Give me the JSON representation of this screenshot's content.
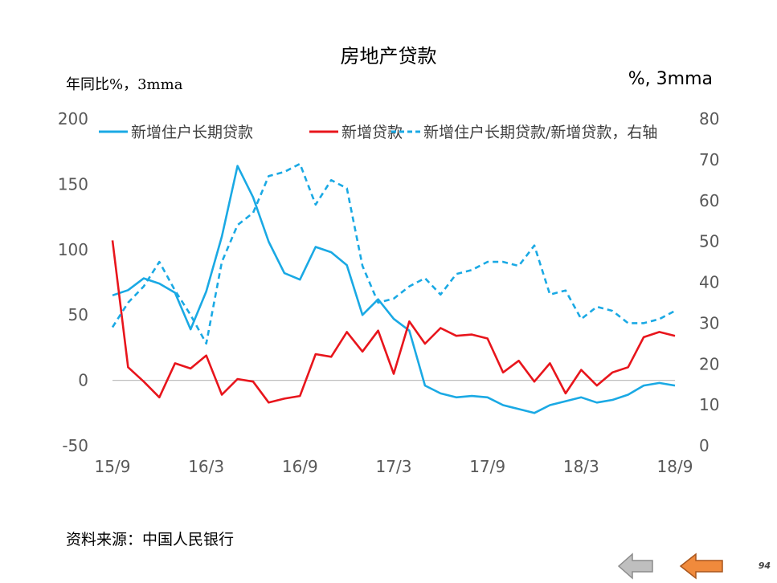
{
  "title": "房地产贷款",
  "left_axis_note": "年同比%，3mma",
  "right_axis_note": "%, 3mma",
  "source": "资料来源：中国人民银行",
  "page_number": "94",
  "colors": {
    "series1": "#1aa9e4",
    "series2": "#e8151c",
    "series3": "#1aa9e4",
    "zero_line": "#bfbfbf"
  },
  "chart_data": {
    "type": "line",
    "x_tick_labels": [
      "15/9",
      "16/3",
      "16/9",
      "17/3",
      "17/9",
      "18/3",
      "18/9"
    ],
    "x": [
      "15/9",
      "15/10",
      "15/11",
      "15/12",
      "16/1",
      "16/2",
      "16/3",
      "16/4",
      "16/5",
      "16/6",
      "16/7",
      "16/8",
      "16/9",
      "16/10",
      "16/11",
      "16/12",
      "17/1",
      "17/2",
      "17/3",
      "17/4",
      "17/5",
      "17/6",
      "17/7",
      "17/8",
      "17/9",
      "17/10",
      "17/11",
      "17/12",
      "18/1",
      "18/2",
      "18/3",
      "18/4",
      "18/5",
      "18/6",
      "18/7",
      "18/8",
      "18/9"
    ],
    "yleft": {
      "min": -50,
      "max": 200,
      "ticks": [
        200,
        150,
        100,
        50,
        0,
        -50
      ]
    },
    "yright": {
      "min": 0,
      "max": 80,
      "ticks": [
        80,
        70,
        60,
        50,
        40,
        30,
        20,
        10,
        0
      ]
    },
    "legend_position": "top",
    "series": [
      {
        "name": "新增住户长期贷款",
        "axis": "left",
        "style": "solid",
        "values": [
          65,
          69,
          78,
          74,
          67,
          39,
          68,
          110,
          164,
          140,
          106,
          82,
          77,
          102,
          98,
          88,
          50,
          62,
          47,
          38,
          -4,
          -10,
          -13,
          -12,
          -13,
          -19,
          -22,
          -25,
          -19,
          -16,
          -13,
          -17,
          -15,
          -11,
          -4,
          -2,
          -4
        ]
      },
      {
        "name": "新增贷款",
        "axis": "left",
        "style": "solid",
        "values": [
          107,
          10,
          -1,
          -13,
          13,
          9,
          19,
          -11,
          1,
          -1,
          -17,
          -14,
          -12,
          20,
          18,
          37,
          22,
          38,
          5,
          45,
          28,
          40,
          34,
          35,
          32,
          6,
          15,
          -1,
          13,
          -10,
          8,
          -4,
          6,
          10,
          33,
          37,
          34
        ]
      },
      {
        "name": "新增住户长期贷款/新增贷款，右轴",
        "axis": "right",
        "style": "dashed",
        "values": [
          29,
          35,
          39,
          45,
          38,
          32,
          25,
          45,
          54,
          57,
          66,
          67,
          69,
          59,
          65,
          63,
          44,
          35,
          36,
          39,
          41,
          37,
          42,
          43,
          45,
          45,
          44,
          49,
          37,
          38,
          31,
          34,
          33,
          30,
          30,
          31,
          33
        ]
      }
    ]
  }
}
